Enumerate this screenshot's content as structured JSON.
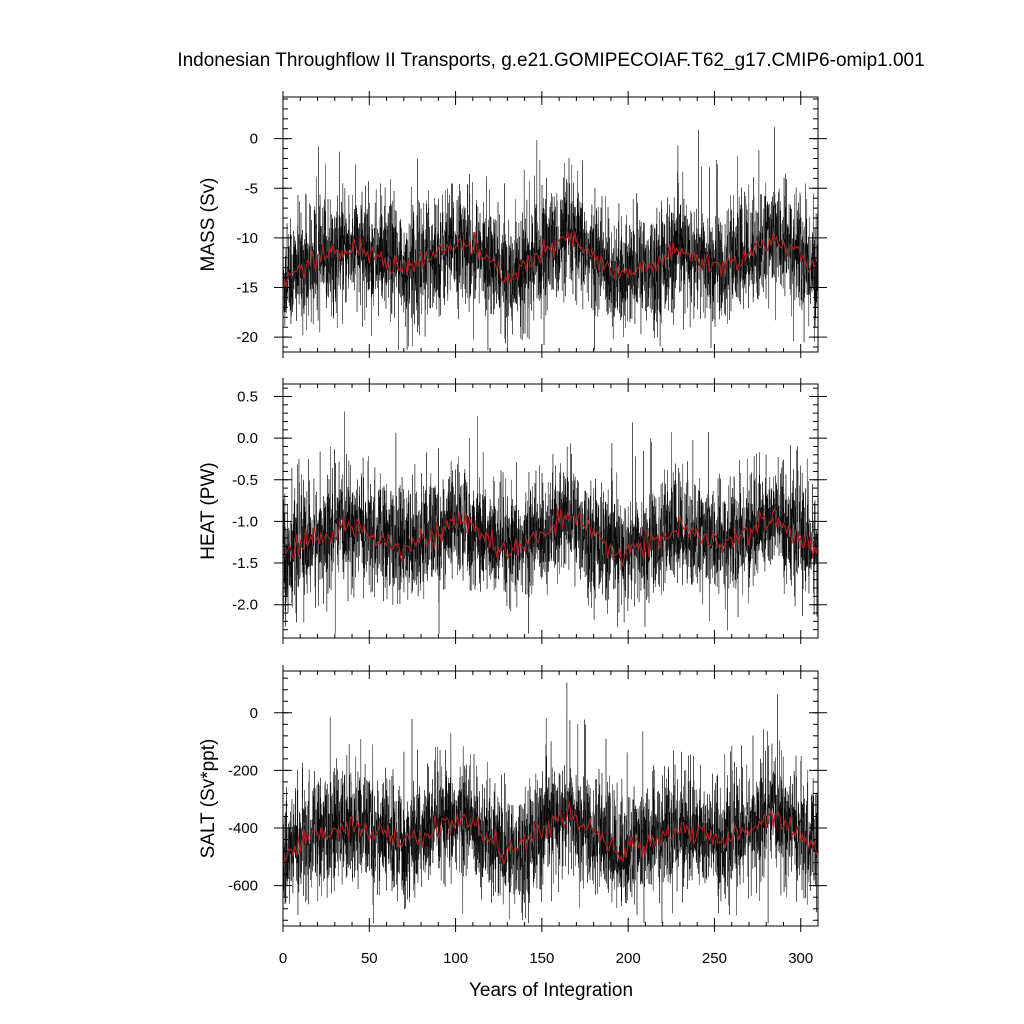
{
  "title": "Indonesian Throughflow II Transports, g.e21.GOMIPECOIAF.T62_g17.CMIP6-omip1.001",
  "xlabel": "Years of Integration",
  "colors": {
    "raw_series": "#000000",
    "smoothed_series": "#b22222",
    "frame": "#000000"
  },
  "chart_data": [
    {
      "type": "line",
      "ylabel": "MASS (Sv)",
      "xlim": [
        0,
        310
      ],
      "ylim": [
        -21.5,
        4.2
      ],
      "xticks": [
        "0",
        "50",
        "100",
        "150",
        "200",
        "250",
        "300"
      ],
      "yticks": [
        "0",
        "-5",
        "-10",
        "-15",
        "-20"
      ],
      "series": [
        {
          "role": "monthly",
          "mean": -12.0,
          "amplitude": 3.0,
          "min": -21.3,
          "max": 3.5
        },
        {
          "role": "annual-mean",
          "mean": -12.0,
          "amplitude": 1.3
        }
      ],
      "approx_annual_mean": [
        [
          0,
          -14.5
        ],
        [
          10,
          -13.0
        ],
        [
          40,
          -11.0
        ],
        [
          70,
          -13.0
        ],
        [
          105,
          -10.5
        ],
        [
          130,
          -14.0
        ],
        [
          165,
          -10.0
        ],
        [
          195,
          -14.0
        ],
        [
          230,
          -11.5
        ],
        [
          255,
          -13.0
        ],
        [
          285,
          -10.0
        ],
        [
          310,
          -13.5
        ]
      ]
    },
    {
      "type": "line",
      "ylabel": "HEAT (PW)",
      "xlim": [
        0,
        310
      ],
      "ylim": [
        -2.4,
        0.65
      ],
      "xticks": [
        "0",
        "50",
        "100",
        "150",
        "200",
        "250",
        "300"
      ],
      "yticks": [
        "0.5",
        "0.0",
        "-0.5",
        "-1.0",
        "-1.5",
        "-2.0"
      ],
      "series": [
        {
          "role": "monthly",
          "mean": -1.2,
          "amplitude": 0.35,
          "min": -2.35,
          "max": 0.55
        },
        {
          "role": "annual-mean",
          "mean": -1.2,
          "amplitude": 0.15
        }
      ],
      "approx_annual_mean": [
        [
          0,
          -1.45
        ],
        [
          10,
          -1.3
        ],
        [
          40,
          -1.05
        ],
        [
          70,
          -1.3
        ],
        [
          105,
          -1.0
        ],
        [
          130,
          -1.4
        ],
        [
          165,
          -0.95
        ],
        [
          195,
          -1.4
        ],
        [
          230,
          -1.1
        ],
        [
          255,
          -1.3
        ],
        [
          285,
          -0.95
        ],
        [
          310,
          -1.35
        ]
      ]
    },
    {
      "type": "line",
      "ylabel": "SALT (Sv*ppt)",
      "xlim": [
        0,
        310
      ],
      "ylim": [
        -740,
        145
      ],
      "xticks": [
        "0",
        "50",
        "100",
        "150",
        "200",
        "250",
        "300"
      ],
      "yticks": [
        "0",
        "-200",
        "-400",
        "-600"
      ],
      "series": [
        {
          "role": "monthly",
          "mean": -420,
          "amplitude": 105,
          "min": -730,
          "max": 130
        },
        {
          "role": "annual-mean",
          "mean": -420,
          "amplitude": 45
        }
      ],
      "approx_annual_mean": [
        [
          0,
          -500
        ],
        [
          10,
          -450
        ],
        [
          40,
          -385
        ],
        [
          70,
          -450
        ],
        [
          105,
          -365
        ],
        [
          130,
          -490
        ],
        [
          165,
          -350
        ],
        [
          195,
          -490
        ],
        [
          230,
          -400
        ],
        [
          255,
          -450
        ],
        [
          285,
          -350
        ],
        [
          310,
          -470
        ]
      ]
    }
  ]
}
